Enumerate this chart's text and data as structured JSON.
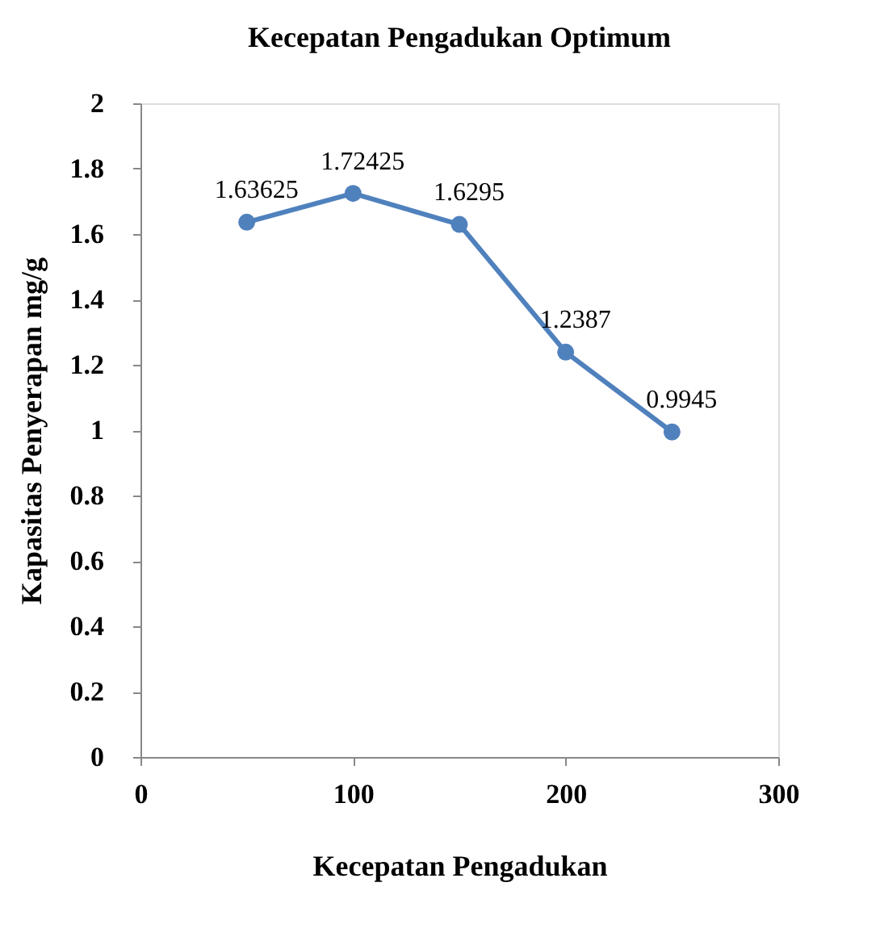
{
  "chart_data": {
    "type": "line",
    "title": "Kecepatan Pengadukan Optimum",
    "xlabel": "Kecepatan Pengadukan",
    "ylabel": "Kapasitas Penyerapan mg/g",
    "x": [
      50,
      100,
      150,
      200,
      250
    ],
    "series": [
      {
        "color": "#4f81bd",
        "values": [
          1.63625,
          1.72425,
          1.6295,
          1.2387,
          0.9945
        ]
      }
    ],
    "xlim": [
      0,
      300
    ],
    "xticks": [
      0,
      100,
      200,
      300
    ],
    "ylim": [
      0,
      2
    ],
    "yticks": [
      0,
      0.2,
      0.4,
      0.6,
      0.8,
      1,
      1.2,
      1.4,
      1.6,
      1.8,
      2
    ],
    "data_labels": true,
    "marker": "circle",
    "line_style": "solid",
    "grid": false,
    "legend": false
  }
}
